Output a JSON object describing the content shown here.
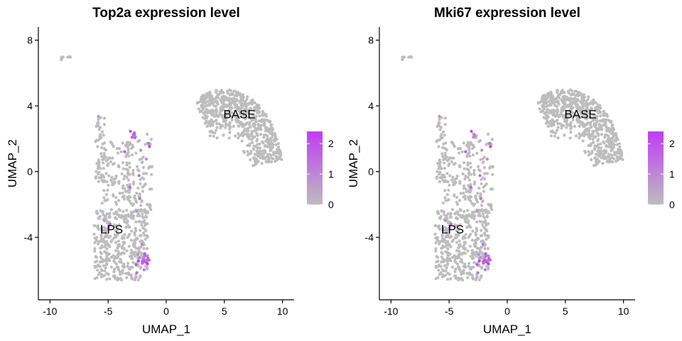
{
  "chart_data": [
    {
      "type": "scatter",
      "title": "Top2a expression level",
      "xlabel": "UMAP_1",
      "ylabel": "UMAP_2",
      "xlim": [
        -11,
        11
      ],
      "ylim": [
        -7.8,
        8.8
      ],
      "xticks": [
        -10,
        -5,
        0,
        5,
        10
      ],
      "yticks": [
        -4,
        0,
        4,
        8
      ],
      "cluster_labels": [
        {
          "text": "BASE",
          "x": 6.3,
          "y": 3.5
        },
        {
          "text": "LPS",
          "x": -4.7,
          "y": -3.5
        }
      ],
      "color_scale": {
        "low": "#bdbdbd",
        "high": "#c03cf5",
        "min": 0,
        "max": 2.4,
        "ticks": [
          0,
          1,
          2
        ]
      },
      "seed": 11,
      "clusters": [
        {
          "shape": "ellipse",
          "cx": -8.6,
          "cy": 6.9,
          "rx": 0.55,
          "ry": 0.18,
          "n": 8,
          "expr_frac": 0
        },
        {
          "shape": "arc",
          "cx": 5.0,
          "cy": 0.0,
          "r_inner": 2.0,
          "r_outer": 5.0,
          "ang_min": 8,
          "ang_max": 120,
          "n": 680,
          "expr_frac": 0
        },
        {
          "shape": "rect",
          "x0": -6.1,
          "x1": -5.3,
          "y0": -1.0,
          "y1": 3.4,
          "n": 55,
          "expr_frac": 0.02
        },
        {
          "shape": "rect",
          "x0": -5.6,
          "x1": -3.0,
          "y0": -2.0,
          "y1": 1.8,
          "n": 110,
          "expr_frac": 0.02
        },
        {
          "shape": "rect",
          "x0": -3.4,
          "x1": -1.2,
          "y0": -2.5,
          "y1": 2.5,
          "n": 100,
          "expr_frac": 0.06
        },
        {
          "shape": "rect",
          "x0": -6.2,
          "x1": -1.6,
          "y0": -6.6,
          "y1": -2.3,
          "n": 420,
          "expr_frac": 0.03
        },
        {
          "shape": "ellipse",
          "cx": -1.9,
          "cy": -5.3,
          "rx": 0.55,
          "ry": 0.4,
          "n": 24,
          "expr_frac": 0.95
        },
        {
          "shape": "ellipse",
          "cx": -2.8,
          "cy": 2.2,
          "rx": 0.2,
          "ry": 0.2,
          "n": 6,
          "expr_frac": 0.9
        }
      ]
    },
    {
      "type": "scatter",
      "title": "Mki67 expression level",
      "xlabel": "UMAP_1",
      "ylabel": "UMAP_2",
      "xlim": [
        -11,
        11
      ],
      "ylim": [
        -7.8,
        8.8
      ],
      "xticks": [
        -10,
        -5,
        0,
        5,
        10
      ],
      "yticks": [
        -4,
        0,
        4,
        8
      ],
      "cluster_labels": [
        {
          "text": "BASE",
          "x": 6.3,
          "y": 3.5
        },
        {
          "text": "LPS",
          "x": -4.7,
          "y": -3.5
        }
      ],
      "color_scale": {
        "low": "#bdbdbd",
        "high": "#c03cf5",
        "min": 0,
        "max": 2.4,
        "ticks": [
          0,
          1,
          2
        ]
      },
      "seed": 11,
      "clusters": [
        {
          "shape": "ellipse",
          "cx": -8.6,
          "cy": 6.9,
          "rx": 0.55,
          "ry": 0.18,
          "n": 8,
          "expr_frac": 0
        },
        {
          "shape": "arc",
          "cx": 5.0,
          "cy": 0.0,
          "r_inner": 2.0,
          "r_outer": 5.0,
          "ang_min": 8,
          "ang_max": 120,
          "n": 680,
          "expr_frac": 0
        },
        {
          "shape": "rect",
          "x0": -6.1,
          "x1": -5.3,
          "y0": -1.0,
          "y1": 3.4,
          "n": 55,
          "expr_frac": 0.01
        },
        {
          "shape": "rect",
          "x0": -5.6,
          "x1": -3.0,
          "y0": -2.0,
          "y1": 1.8,
          "n": 110,
          "expr_frac": 0.02
        },
        {
          "shape": "rect",
          "x0": -3.4,
          "x1": -1.2,
          "y0": -2.5,
          "y1": 2.5,
          "n": 100,
          "expr_frac": 0.05
        },
        {
          "shape": "rect",
          "x0": -6.2,
          "x1": -1.6,
          "y0": -6.6,
          "y1": -2.3,
          "n": 420,
          "expr_frac": 0.03
        },
        {
          "shape": "ellipse",
          "cx": -1.9,
          "cy": -5.3,
          "rx": 0.55,
          "ry": 0.4,
          "n": 24,
          "expr_frac": 0.95
        },
        {
          "shape": "ellipse",
          "cx": -2.8,
          "cy": 2.2,
          "rx": 0.2,
          "ry": 0.2,
          "n": 6,
          "expr_frac": 0.7
        }
      ]
    }
  ]
}
